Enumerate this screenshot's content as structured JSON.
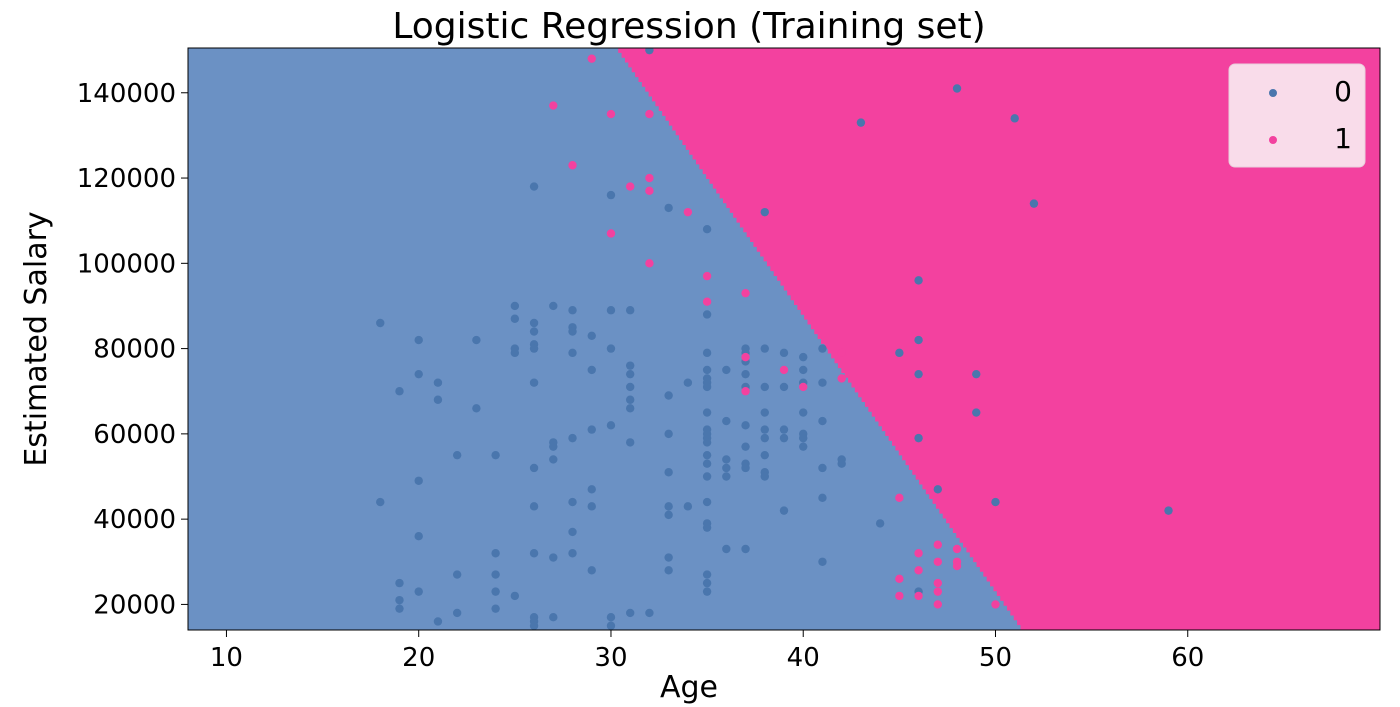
{
  "chart_data": {
    "type": "scatter",
    "title": "Logistic Regression (Training set)",
    "xlabel": "Age",
    "ylabel": "Estimated Salary",
    "xlim": [
      8,
      70
    ],
    "ylim": [
      14000,
      150500
    ],
    "xticks": [
      10,
      20,
      30,
      40,
      50,
      60
    ],
    "yticks": [
      20000,
      40000,
      60000,
      80000,
      100000,
      120000,
      140000
    ],
    "xtick_labels": [
      "10",
      "20",
      "30",
      "40",
      "50",
      "60"
    ],
    "ytick_labels": [
      "20000",
      "40000",
      "60000",
      "80000",
      "100000",
      "120000",
      "140000"
    ],
    "legend_position": "top-right",
    "decision_regions": {
      "class_0_color": "#6b91c4",
      "class_1_color": "#f3419f",
      "boundary": [
        [
          30.2,
          150500
        ],
        [
          51.3,
          14000
        ]
      ]
    },
    "series": [
      {
        "name": "0",
        "color": "#4a76ad",
        "points": [
          [
            18,
            86000
          ],
          [
            18,
            44000
          ],
          [
            19,
            70000
          ],
          [
            19,
            25000
          ],
          [
            19,
            21000
          ],
          [
            19,
            19000
          ],
          [
            20,
            82000
          ],
          [
            20,
            74000
          ],
          [
            20,
            49000
          ],
          [
            20,
            36000
          ],
          [
            20,
            23000
          ],
          [
            21,
            72000
          ],
          [
            21,
            68000
          ],
          [
            21,
            16000
          ],
          [
            22,
            55000
          ],
          [
            22,
            27000
          ],
          [
            22,
            18000
          ],
          [
            23,
            82000
          ],
          [
            23,
            66000
          ],
          [
            24,
            55000
          ],
          [
            24,
            32000
          ],
          [
            24,
            27000
          ],
          [
            24,
            23000
          ],
          [
            24,
            19000
          ],
          [
            25,
            90000
          ],
          [
            25,
            87000
          ],
          [
            25,
            80000
          ],
          [
            25,
            79000
          ],
          [
            25,
            22000
          ],
          [
            26,
            118000
          ],
          [
            26,
            86000
          ],
          [
            26,
            84000
          ],
          [
            26,
            81000
          ],
          [
            26,
            80000
          ],
          [
            26,
            72000
          ],
          [
            26,
            52000
          ],
          [
            26,
            43000
          ],
          [
            26,
            32000
          ],
          [
            26,
            17000
          ],
          [
            26,
            16000
          ],
          [
            26,
            15000
          ],
          [
            27,
            90000
          ],
          [
            27,
            58000
          ],
          [
            27,
            57000
          ],
          [
            27,
            54000
          ],
          [
            27,
            31000
          ],
          [
            27,
            17000
          ],
          [
            28,
            89000
          ],
          [
            28,
            85000
          ],
          [
            28,
            84000
          ],
          [
            28,
            79000
          ],
          [
            28,
            59000
          ],
          [
            28,
            44000
          ],
          [
            28,
            37000
          ],
          [
            28,
            32000
          ],
          [
            29,
            83000
          ],
          [
            29,
            75000
          ],
          [
            29,
            61000
          ],
          [
            29,
            47000
          ],
          [
            29,
            43000
          ],
          [
            29,
            28000
          ],
          [
            30,
            116000
          ],
          [
            30,
            89000
          ],
          [
            30,
            80000
          ],
          [
            30,
            62000
          ],
          [
            30,
            17000
          ],
          [
            30,
            15000
          ],
          [
            31,
            89000
          ],
          [
            31,
            76000
          ],
          [
            31,
            74000
          ],
          [
            31,
            71000
          ],
          [
            31,
            68000
          ],
          [
            31,
            66000
          ],
          [
            31,
            58000
          ],
          [
            31,
            18000
          ],
          [
            32,
            18000
          ],
          [
            32,
            150000
          ],
          [
            33,
            113000
          ],
          [
            33,
            69000
          ],
          [
            33,
            60000
          ],
          [
            33,
            51000
          ],
          [
            33,
            43000
          ],
          [
            33,
            41000
          ],
          [
            33,
            31000
          ],
          [
            33,
            28000
          ],
          [
            34,
            72000
          ],
          [
            34,
            43000
          ],
          [
            35,
            108000
          ],
          [
            35,
            88000
          ],
          [
            35,
            79000
          ],
          [
            35,
            75000
          ],
          [
            35,
            73000
          ],
          [
            35,
            72000
          ],
          [
            35,
            71000
          ],
          [
            35,
            65000
          ],
          [
            35,
            61000
          ],
          [
            35,
            60000
          ],
          [
            35,
            59000
          ],
          [
            35,
            58000
          ],
          [
            35,
            55000
          ],
          [
            35,
            53000
          ],
          [
            35,
            50000
          ],
          [
            35,
            44000
          ],
          [
            35,
            39000
          ],
          [
            35,
            38000
          ],
          [
            35,
            27000
          ],
          [
            35,
            25000
          ],
          [
            35,
            23000
          ],
          [
            36,
            75000
          ],
          [
            36,
            63000
          ],
          [
            36,
            54000
          ],
          [
            36,
            52000
          ],
          [
            36,
            50000
          ],
          [
            36,
            33000
          ],
          [
            37,
            80000
          ],
          [
            37,
            79000
          ],
          [
            37,
            77000
          ],
          [
            37,
            74000
          ],
          [
            37,
            71000
          ],
          [
            37,
            62000
          ],
          [
            37,
            57000
          ],
          [
            37,
            53000
          ],
          [
            37,
            52000
          ],
          [
            37,
            33000
          ],
          [
            38,
            112000
          ],
          [
            38,
            80000
          ],
          [
            38,
            71000
          ],
          [
            38,
            65000
          ],
          [
            38,
            61000
          ],
          [
            38,
            59000
          ],
          [
            38,
            55000
          ],
          [
            38,
            51000
          ],
          [
            38,
            50000
          ],
          [
            39,
            79000
          ],
          [
            39,
            71000
          ],
          [
            39,
            61000
          ],
          [
            39,
            59000
          ],
          [
            39,
            42000
          ],
          [
            40,
            78000
          ],
          [
            40,
            75000
          ],
          [
            40,
            72000
          ],
          [
            40,
            65000
          ],
          [
            40,
            60000
          ],
          [
            40,
            59000
          ],
          [
            40,
            57000
          ],
          [
            41,
            80000
          ],
          [
            41,
            72000
          ],
          [
            41,
            63000
          ],
          [
            41,
            52000
          ],
          [
            41,
            45000
          ],
          [
            41,
            30000
          ],
          [
            42,
            54000
          ],
          [
            42,
            53000
          ],
          [
            43,
            133000
          ],
          [
            44,
            39000
          ],
          [
            45,
            79000
          ],
          [
            46,
            96000
          ],
          [
            46,
            82000
          ],
          [
            46,
            74000
          ],
          [
            46,
            59000
          ],
          [
            46,
            23000
          ],
          [
            47,
            47000
          ],
          [
            48,
            141000
          ],
          [
            49,
            74000
          ],
          [
            49,
            65000
          ],
          [
            50,
            44000
          ],
          [
            51,
            134000
          ],
          [
            52,
            114000
          ],
          [
            59,
            42000
          ]
        ]
      },
      {
        "name": "1",
        "color": "#f3419f",
        "points": [
          [
            27,
            137000
          ],
          [
            28,
            123000
          ],
          [
            29,
            148000
          ],
          [
            30,
            135000
          ],
          [
            30,
            107000
          ],
          [
            31,
            118000
          ],
          [
            32,
            135000
          ],
          [
            32,
            120000
          ],
          [
            32,
            117000
          ],
          [
            32,
            100000
          ],
          [
            34,
            112000
          ],
          [
            35,
            97000
          ],
          [
            35,
            91000
          ],
          [
            37,
            93000
          ],
          [
            37,
            78000
          ],
          [
            37,
            70000
          ],
          [
            39,
            75000
          ],
          [
            40,
            71000
          ],
          [
            42,
            79000
          ],
          [
            42,
            73000
          ],
          [
            45,
            45000
          ],
          [
            45,
            26000
          ],
          [
            45,
            22000
          ],
          [
            46,
            32000
          ],
          [
            46,
            28000
          ],
          [
            46,
            22000
          ],
          [
            47,
            34000
          ],
          [
            47,
            30000
          ],
          [
            47,
            25000
          ],
          [
            47,
            23000
          ],
          [
            47,
            20000
          ],
          [
            48,
            33000
          ],
          [
            48,
            30000
          ],
          [
            48,
            29000
          ],
          [
            50,
            20000
          ]
        ]
      }
    ]
  }
}
